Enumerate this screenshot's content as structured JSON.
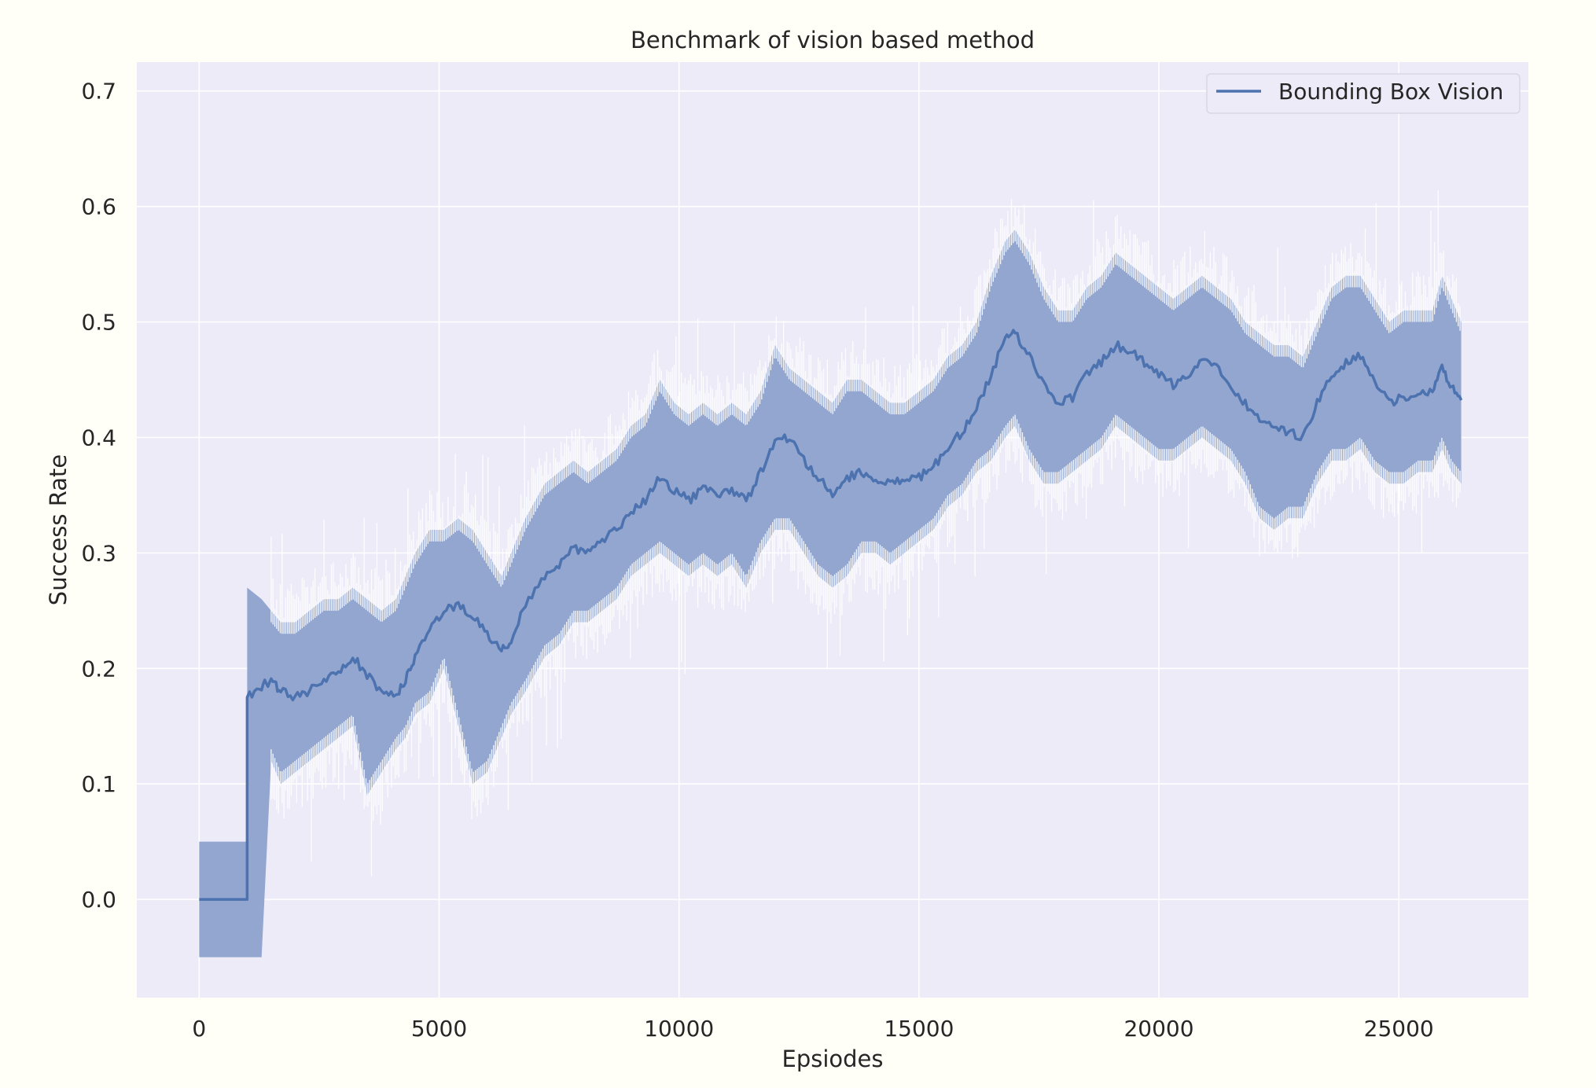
{
  "chart_data": {
    "type": "line",
    "title": "Benchmark of vision based method",
    "xlabel": "Epsiodes",
    "ylabel": "Success Rate",
    "xlim": [
      -1300,
      27700
    ],
    "ylim": [
      -0.085,
      0.725
    ],
    "xticks": [
      0,
      5000,
      10000,
      15000,
      20000,
      25000
    ],
    "yticks": [
      0.0,
      0.1,
      0.2,
      0.3,
      0.4,
      0.5,
      0.6,
      0.7
    ],
    "grid": true,
    "legend": "top-right",
    "colors": {
      "background": "#fffff8",
      "plot_area": "#ecebf7",
      "grid": "#ffffff",
      "series": "#4c72b0",
      "band": "#93a6cf",
      "band_spikes": "#ffffff"
    },
    "series": [
      {
        "name": "Bounding Box Vision",
        "x": [
          0,
          1000,
          1000,
          1300,
          1500,
          1700,
          2000,
          2300,
          2600,
          2900,
          3200,
          3500,
          3800,
          4100,
          4300,
          4500,
          4800,
          5100,
          5400,
          5700,
          6000,
          6300,
          6500,
          6800,
          7200,
          7500,
          7800,
          8100,
          8400,
          8700,
          9000,
          9300,
          9600,
          9900,
          10200,
          10500,
          10800,
          11100,
          11400,
          11700,
          12000,
          12300,
          12600,
          12900,
          13200,
          13500,
          13800,
          14100,
          14400,
          14700,
          15000,
          15300,
          15600,
          15900,
          16200,
          16500,
          16800,
          17000,
          17300,
          17600,
          17900,
          18200,
          18500,
          18800,
          19100,
          19400,
          19700,
          20000,
          20300,
          20600,
          20900,
          21200,
          21500,
          21800,
          22100,
          22400,
          22700,
          23000,
          23300,
          23600,
          23900,
          24200,
          24500,
          24800,
          25100,
          25400,
          25700,
          25900,
          26100,
          26300
        ],
        "values": [
          0.0,
          0.0,
          0.175,
          0.185,
          0.19,
          0.18,
          0.175,
          0.18,
          0.19,
          0.195,
          0.21,
          0.195,
          0.18,
          0.175,
          0.19,
          0.21,
          0.235,
          0.25,
          0.255,
          0.245,
          0.23,
          0.215,
          0.225,
          0.255,
          0.28,
          0.29,
          0.305,
          0.3,
          0.31,
          0.32,
          0.335,
          0.345,
          0.365,
          0.355,
          0.345,
          0.355,
          0.35,
          0.355,
          0.345,
          0.37,
          0.395,
          0.4,
          0.38,
          0.365,
          0.35,
          0.365,
          0.37,
          0.365,
          0.36,
          0.365,
          0.365,
          0.375,
          0.39,
          0.405,
          0.425,
          0.455,
          0.485,
          0.49,
          0.47,
          0.445,
          0.43,
          0.435,
          0.455,
          0.465,
          0.48,
          0.475,
          0.465,
          0.455,
          0.445,
          0.455,
          0.465,
          0.46,
          0.445,
          0.43,
          0.415,
          0.41,
          0.405,
          0.4,
          0.43,
          0.455,
          0.465,
          0.47,
          0.45,
          0.43,
          0.435,
          0.44,
          0.44,
          0.46,
          0.445,
          0.435
        ],
        "band_low": [
          -0.05,
          -0.05,
          -0.05,
          -0.05,
          0.12,
          0.1,
          0.11,
          0.12,
          0.13,
          0.14,
          0.15,
          0.09,
          0.11,
          0.13,
          0.14,
          0.16,
          0.17,
          0.2,
          0.15,
          0.1,
          0.11,
          0.14,
          0.16,
          0.18,
          0.21,
          0.22,
          0.24,
          0.24,
          0.25,
          0.26,
          0.28,
          0.29,
          0.3,
          0.29,
          0.28,
          0.29,
          0.28,
          0.29,
          0.27,
          0.3,
          0.32,
          0.32,
          0.3,
          0.28,
          0.27,
          0.28,
          0.3,
          0.3,
          0.29,
          0.3,
          0.31,
          0.32,
          0.34,
          0.35,
          0.37,
          0.38,
          0.4,
          0.41,
          0.38,
          0.36,
          0.36,
          0.37,
          0.38,
          0.39,
          0.41,
          0.4,
          0.39,
          0.38,
          0.38,
          0.39,
          0.4,
          0.39,
          0.38,
          0.36,
          0.33,
          0.32,
          0.33,
          0.33,
          0.36,
          0.38,
          0.38,
          0.39,
          0.37,
          0.36,
          0.36,
          0.37,
          0.37,
          0.39,
          0.37,
          0.36
        ],
        "band_high": [
          0.05,
          0.05,
          0.27,
          0.26,
          0.25,
          0.24,
          0.24,
          0.25,
          0.26,
          0.26,
          0.27,
          0.26,
          0.25,
          0.26,
          0.28,
          0.3,
          0.32,
          0.32,
          0.33,
          0.32,
          0.3,
          0.28,
          0.3,
          0.33,
          0.36,
          0.37,
          0.38,
          0.37,
          0.38,
          0.39,
          0.41,
          0.42,
          0.45,
          0.43,
          0.42,
          0.43,
          0.42,
          0.43,
          0.42,
          0.44,
          0.48,
          0.46,
          0.45,
          0.44,
          0.43,
          0.45,
          0.45,
          0.44,
          0.43,
          0.43,
          0.44,
          0.45,
          0.47,
          0.48,
          0.5,
          0.54,
          0.57,
          0.58,
          0.56,
          0.53,
          0.51,
          0.51,
          0.53,
          0.54,
          0.56,
          0.55,
          0.54,
          0.53,
          0.52,
          0.53,
          0.54,
          0.53,
          0.52,
          0.5,
          0.49,
          0.48,
          0.48,
          0.47,
          0.5,
          0.53,
          0.54,
          0.54,
          0.52,
          0.5,
          0.51,
          0.51,
          0.51,
          0.54,
          0.52,
          0.5
        ]
      }
    ]
  }
}
